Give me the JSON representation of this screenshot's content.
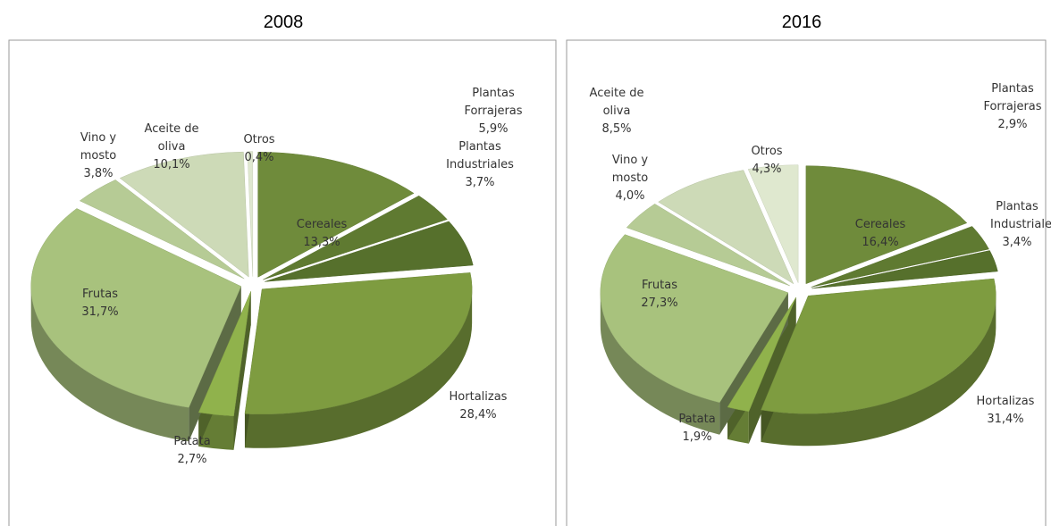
{
  "chart_data": [
    {
      "type": "pie",
      "title": "2008",
      "categories": [
        "Cereales",
        "Plantas Industriales",
        "Plantas Forrajeras",
        "Hortalizas",
        "Patata",
        "Frutas",
        "Vino y mosto",
        "Aceite de oliva",
        "Otros"
      ],
      "values": [
        13.3,
        3.7,
        5.9,
        28.4,
        2.7,
        31.7,
        3.8,
        10.1,
        0.4
      ],
      "value_labels": [
        "13,3%",
        "3,7%",
        "5,9%",
        "28,4%",
        "2,7%",
        "31,7%",
        "3,8%",
        "10,1%",
        "0,4%"
      ],
      "colors": [
        "#6f8b3b",
        "#5f7a31",
        "#56702c",
        "#7e9c40",
        "#90b24c",
        "#a8c27d",
        "#b6cb95",
        "#cddab7",
        "#dfe8cf"
      ]
    },
    {
      "type": "pie",
      "title": "2016",
      "categories": [
        "Cereales",
        "Plantas Industriales",
        "Plantas Forrajeras",
        "Hortalizas",
        "Patata",
        "Frutas",
        "Vino y mosto",
        "Aceite de oliva",
        "Otros"
      ],
      "values": [
        16.4,
        3.4,
        2.9,
        31.4,
        1.9,
        27.3,
        4.0,
        8.5,
        4.3
      ],
      "value_labels": [
        "16,4%",
        "3,4%",
        "2,9%",
        "31,4%",
        "1,9%",
        "27,3%",
        "4,0%",
        "8,5%",
        "4,3%"
      ],
      "colors": [
        "#6f8b3b",
        "#5f7a31",
        "#56702c",
        "#7e9c40",
        "#90b24c",
        "#a8c27d",
        "#b6cb95",
        "#cddab7",
        "#dfe8cf"
      ]
    }
  ]
}
